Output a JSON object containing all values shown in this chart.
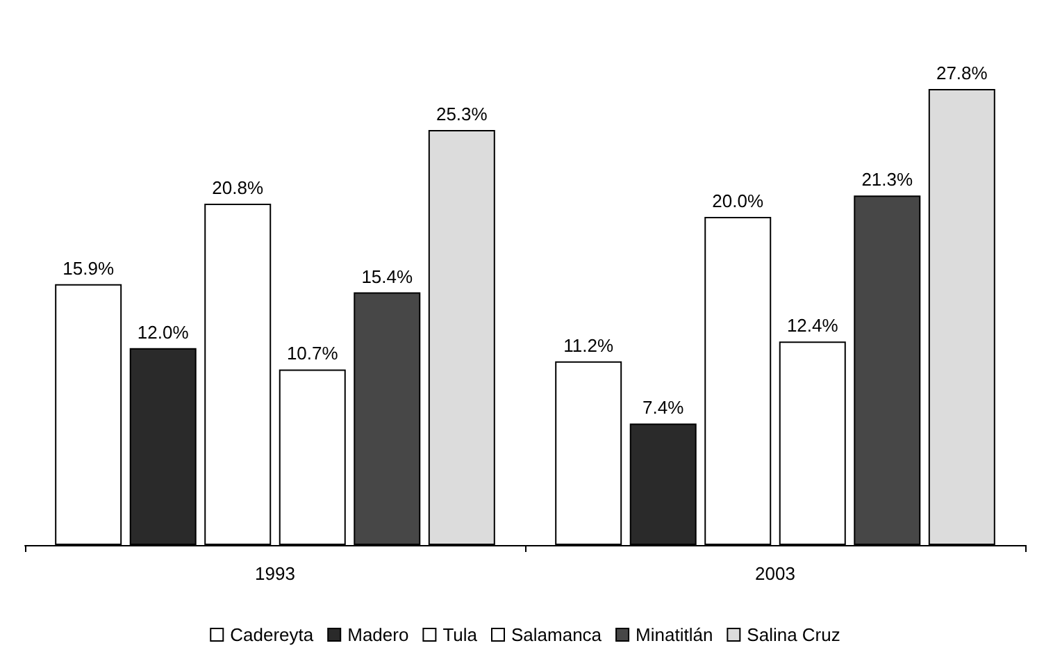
{
  "chart_data": {
    "type": "bar",
    "categories": [
      "1993",
      "2003"
    ],
    "series": [
      {
        "name": "Cadereyta",
        "color": "#ffffff",
        "values": [
          15.9,
          11.2
        ],
        "value_labels": [
          "15.9%",
          "11.2%"
        ]
      },
      {
        "name": "Madero",
        "color": "#2a2a2a",
        "values": [
          12.0,
          7.4
        ],
        "value_labels": [
          "12.0%",
          "7.4%"
        ]
      },
      {
        "name": "Tula",
        "color": "#ffffff",
        "values": [
          20.8,
          20.0
        ],
        "value_labels": [
          "20.8%",
          "20.0%"
        ]
      },
      {
        "name": "Salamanca",
        "color": "#ffffff",
        "values": [
          10.7,
          12.4
        ],
        "value_labels": [
          "10.7%",
          "12.4%"
        ]
      },
      {
        "name": "Minatitlán",
        "color": "#474747",
        "values": [
          15.4,
          21.3
        ],
        "value_labels": [
          "15.4%",
          "21.3%"
        ]
      },
      {
        "name": "Salina Cruz",
        "color": "#dcdcdc",
        "values": [
          25.3,
          27.8
        ],
        "value_labels": [
          "25.3%",
          "27.8%"
        ]
      }
    ],
    "legend": "bottom",
    "grid": false
  }
}
